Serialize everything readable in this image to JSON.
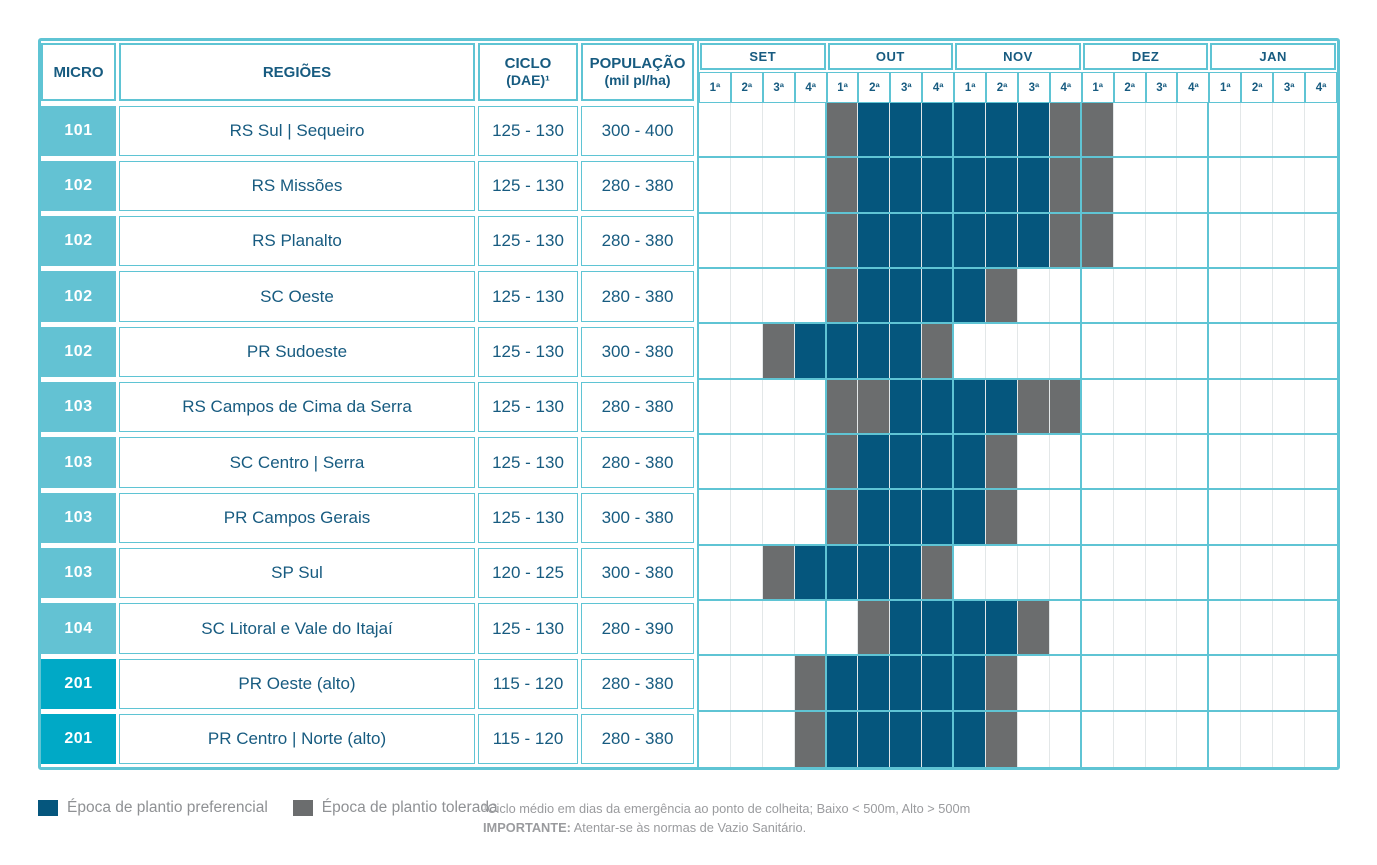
{
  "header": {
    "micro": "MICRO",
    "regioes": "REGIÕES",
    "ciclo_line1": "CICLO",
    "ciclo_line2": "(DAE)¹",
    "populacao_line1": "POPULAÇÃO",
    "populacao_line2": "(mil pl/ha)",
    "months": [
      "SET",
      "OUT",
      "NOV",
      "DEZ",
      "JAN"
    ],
    "weeks": [
      "1ª",
      "2ª",
      "3ª",
      "4ª"
    ]
  },
  "rows": [
    {
      "micro": "101",
      "micro_color": "light",
      "regiao": "RS Sul | Sequeiro",
      "ciclo": "125 - 130",
      "populacao": "300 - 400",
      "schedule": "....TPPPPPPTT......."
    },
    {
      "micro": "102",
      "micro_color": "light",
      "regiao": "RS Missões",
      "ciclo": "125 - 130",
      "populacao": "280 - 380",
      "schedule": "....TPPPPPPTT......."
    },
    {
      "micro": "102",
      "micro_color": "light",
      "regiao": "RS Planalto",
      "ciclo": "125 - 130",
      "populacao": "280 - 380",
      "schedule": "....TPPPPPPTT......."
    },
    {
      "micro": "102",
      "micro_color": "light",
      "regiao": "SC Oeste",
      "ciclo": "125 - 130",
      "populacao": "280 - 380",
      "schedule": "....TPPPPT.........."
    },
    {
      "micro": "102",
      "micro_color": "light",
      "regiao": "PR Sudoeste",
      "ciclo": "125 - 130",
      "populacao": "300 - 380",
      "schedule": "..TPPPPT............"
    },
    {
      "micro": "103",
      "micro_color": "light",
      "regiao": "RS Campos de Cima da Serra",
      "ciclo": "125 - 130",
      "populacao": "280 - 380",
      "schedule": "....TTPPPPTT........"
    },
    {
      "micro": "103",
      "micro_color": "light",
      "regiao": "SC Centro | Serra",
      "ciclo": "125 - 130",
      "populacao": "280 - 380",
      "schedule": "....TPPPPT.........."
    },
    {
      "micro": "103",
      "micro_color": "light",
      "regiao": "PR Campos Gerais",
      "ciclo": "125 - 130",
      "populacao": "300 - 380",
      "schedule": "....TPPPPT.........."
    },
    {
      "micro": "103",
      "micro_color": "light",
      "regiao": "SP Sul",
      "ciclo": "120 - 125",
      "populacao": "300 - 380",
      "schedule": "..TPPPPT............"
    },
    {
      "micro": "104",
      "micro_color": "light",
      "regiao": "SC Litoral e Vale do Itajaí",
      "ciclo": "125 - 130",
      "populacao": "280 - 390",
      "schedule": ".....TPPPPT........."
    },
    {
      "micro": "201",
      "micro_color": "bright",
      "regiao": "PR Oeste (alto)",
      "ciclo": "115 - 120",
      "populacao": "280 - 380",
      "schedule": "...TPPPPPT.........."
    },
    {
      "micro": "201",
      "micro_color": "bright",
      "regiao": "PR Centro | Norte (alto)",
      "ciclo": "115 - 120",
      "populacao": "280 - 380",
      "schedule": "...TPPPPPT.........."
    }
  ],
  "schedule_key": {
    "P": "Época de plantio preferencial",
    "T": "Época de plantio tolerada",
    ".": "vazio"
  },
  "legend": {
    "preferencial": {
      "label": "Época de plantio preferencial",
      "color": "#05567d"
    },
    "tolerada": {
      "label": "Época de plantio tolerada",
      "color": "#6b6d6e"
    }
  },
  "footnotes": {
    "line1": "¹Ciclo médio em dias da emergência ao ponto de colheita; Baixo < 500m, Alto > 500m",
    "line2_bold": "IMPORTANTE:",
    "line2_rest": " Atentar-se às normas de Vazio Sanitário."
  },
  "colors": {
    "border_cyan": "#5fc4d4",
    "micro_light": "#63c2d3",
    "micro_bright": "#00a9c6",
    "preferencial": "#05567d",
    "tolerada": "#6b6d6e",
    "text_blue": "#175b80"
  }
}
